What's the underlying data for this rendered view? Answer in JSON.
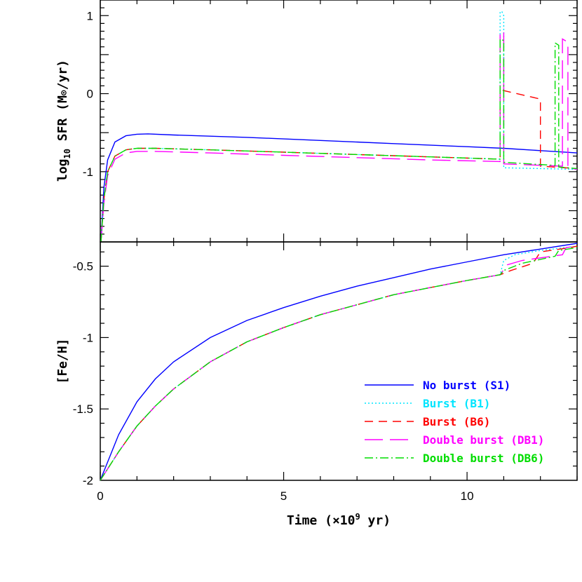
{
  "chart_data": [
    {
      "type": "line",
      "panel": "top",
      "ylabel": "log10 SFR (M⊙/yr)",
      "ylabel_parts": {
        "main": "log",
        "sub": "10",
        "rest": " SFR (M",
        "sun": "⊙",
        "end": "/yr)"
      },
      "xlim": [
        0,
        13
      ],
      "ylim": [
        -1.9,
        1.2
      ],
      "yticks": [
        1,
        0,
        -1
      ],
      "ytick_labels": [
        "1",
        "0",
        "-1"
      ],
      "series": [
        {
          "name": "No burst (S1)",
          "color": "#0000ff",
          "dash": "",
          "x": [
            0.02,
            0.1,
            0.2,
            0.4,
            0.7,
            1.0,
            1.3,
            2,
            4,
            6,
            8,
            10,
            11,
            12,
            13
          ],
          "y": [
            -1.9,
            -1.2,
            -0.85,
            -0.62,
            -0.54,
            -0.52,
            -0.515,
            -0.53,
            -0.56,
            -0.6,
            -0.64,
            -0.68,
            -0.7,
            -0.73,
            -0.76
          ]
        },
        {
          "name": "Burst (B1)",
          "color": "#00e5ff",
          "dash": "2 3",
          "x": [
            0.02,
            0.1,
            0.2,
            0.4,
            0.7,
            1.0,
            1.5,
            3,
            5,
            7,
            9,
            10.9,
            10.9,
            10.95,
            11.0,
            11.0,
            12,
            13
          ],
          "y": [
            -1.9,
            -1.35,
            -1.0,
            -0.8,
            -0.72,
            -0.7,
            -0.7,
            -0.72,
            -0.75,
            -0.78,
            -0.81,
            -0.84,
            1.05,
            1.05,
            1.0,
            -0.95,
            -0.96,
            -0.97
          ]
        },
        {
          "name": "Burst (B6)",
          "color": "#ff0000",
          "dash": "12 8",
          "x": [
            0.02,
            0.1,
            0.2,
            0.4,
            0.7,
            1.0,
            1.5,
            3,
            5,
            7,
            9,
            10.9,
            10.9,
            12.0,
            12.0,
            13
          ],
          "y": [
            -1.9,
            -1.35,
            -1.0,
            -0.8,
            -0.72,
            -0.7,
            -0.7,
            -0.72,
            -0.75,
            -0.78,
            -0.81,
            -0.84,
            0.05,
            -0.07,
            -0.93,
            -0.96
          ]
        },
        {
          "name": "Double burst (DB1)",
          "color": "#ff00ff",
          "dash": "26 10",
          "x": [
            0.02,
            0.1,
            0.2,
            0.4,
            0.7,
            1.0,
            1.5,
            3,
            5,
            7,
            9,
            10.9,
            10.9,
            11.0,
            11.0,
            12.6,
            12.6,
            12.75,
            12.75,
            13
          ],
          "y": [
            -1.9,
            -1.4,
            -1.05,
            -0.84,
            -0.76,
            -0.74,
            -0.74,
            -0.76,
            -0.79,
            -0.82,
            -0.85,
            -0.87,
            0.8,
            0.78,
            -0.9,
            -0.93,
            0.7,
            0.66,
            -0.95,
            -0.97
          ]
        },
        {
          "name": "Double burst (DB6)",
          "color": "#00dd00",
          "dash": "12 4 2 4",
          "x": [
            0.02,
            0.1,
            0.2,
            0.4,
            0.7,
            1.0,
            1.5,
            3,
            5,
            7,
            9,
            10.9,
            10.9,
            11.0,
            11.0,
            12.4,
            12.4,
            12.5,
            12.5,
            13
          ],
          "y": [
            -1.9,
            -1.35,
            -1.0,
            -0.8,
            -0.72,
            -0.7,
            -0.7,
            -0.72,
            -0.75,
            -0.78,
            -0.81,
            -0.84,
            0.7,
            0.68,
            -0.88,
            -0.92,
            0.65,
            0.62,
            -0.94,
            -0.96
          ]
        }
      ]
    },
    {
      "type": "line",
      "panel": "bottom",
      "xlabel": "Time (×10⁹ yr)",
      "xlabel_parts": {
        "main": "Time (×10",
        "sup": "9",
        "rest": " yr)"
      },
      "ylabel": "[Fe/H]",
      "xlim": [
        0,
        13
      ],
      "ylim": [
        -2.0,
        -0.33
      ],
      "xticks": [
        0,
        5,
        10
      ],
      "xtick_labels": [
        "0",
        "5",
        "10"
      ],
      "yticks": [
        -0.5,
        -1,
        -1.5,
        -2
      ],
      "ytick_labels": [
        "-0.5",
        "-1",
        "-1.5",
        "-2"
      ],
      "series": [
        {
          "name": "No burst (S1)",
          "color": "#0000ff",
          "dash": "",
          "x": [
            0,
            0.5,
            1,
            1.5,
            2,
            3,
            4,
            5,
            6,
            7,
            8,
            9,
            10,
            11,
            12,
            13
          ],
          "y": [
            -2.0,
            -1.68,
            -1.45,
            -1.29,
            -1.17,
            -1.0,
            -0.88,
            -0.79,
            -0.71,
            -0.64,
            -0.58,
            -0.52,
            -0.47,
            -0.42,
            -0.38,
            -0.34
          ]
        },
        {
          "name": "Burst (B1)",
          "color": "#00e5ff",
          "dash": "2 3",
          "x": [
            0,
            0.5,
            1,
            1.5,
            2,
            3,
            4,
            5,
            6,
            7,
            8,
            9,
            10,
            10.9,
            11.0,
            11.3,
            12,
            13
          ],
          "y": [
            -2.0,
            -1.8,
            -1.62,
            -1.48,
            -1.36,
            -1.17,
            -1.03,
            -0.93,
            -0.84,
            -0.77,
            -0.7,
            -0.65,
            -0.6,
            -0.56,
            -0.46,
            -0.42,
            -0.39,
            -0.36
          ]
        },
        {
          "name": "Burst (B6)",
          "color": "#ff0000",
          "dash": "12 8",
          "x": [
            0,
            0.5,
            1,
            1.5,
            2,
            3,
            4,
            5,
            6,
            7,
            8,
            9,
            10,
            10.9,
            11.2,
            11.8,
            12.0,
            12.8,
            13
          ],
          "y": [
            -2.0,
            -1.8,
            -1.62,
            -1.48,
            -1.36,
            -1.17,
            -1.03,
            -0.93,
            -0.84,
            -0.77,
            -0.7,
            -0.65,
            -0.6,
            -0.56,
            -0.53,
            -0.48,
            -0.4,
            -0.37,
            -0.36
          ]
        },
        {
          "name": "Double burst (DB1)",
          "color": "#ff00ff",
          "dash": "26 10",
          "x": [
            0,
            0.5,
            1,
            1.5,
            2,
            3,
            4,
            5,
            6,
            7,
            8,
            9,
            10,
            10.9,
            11.1,
            11.5,
            12.6,
            12.7,
            13
          ],
          "y": [
            -2.0,
            -1.8,
            -1.62,
            -1.48,
            -1.36,
            -1.17,
            -1.03,
            -0.93,
            -0.84,
            -0.77,
            -0.7,
            -0.65,
            -0.6,
            -0.56,
            -0.49,
            -0.46,
            -0.42,
            -0.37,
            -0.36
          ]
        },
        {
          "name": "Double burst (DB6)",
          "color": "#00dd00",
          "dash": "12 4 2 4",
          "x": [
            0,
            0.5,
            1,
            1.5,
            2,
            3,
            4,
            5,
            6,
            7,
            8,
            9,
            10,
            10.9,
            11.0,
            11.5,
            12.4,
            12.5,
            13
          ],
          "y": [
            -2.0,
            -1.8,
            -1.62,
            -1.48,
            -1.36,
            -1.17,
            -1.03,
            -0.93,
            -0.84,
            -0.77,
            -0.7,
            -0.65,
            -0.6,
            -0.56,
            -0.53,
            -0.48,
            -0.43,
            -0.39,
            -0.37
          ]
        }
      ]
    }
  ],
  "legend": {
    "placement": "bottom-right",
    "entries": [
      {
        "label": "No burst (S1)",
        "color": "#0000ff",
        "dash": ""
      },
      {
        "label": "Burst (B1)",
        "color": "#00e5ff",
        "dash": "2 3"
      },
      {
        "label": "Burst (B6)",
        "color": "#ff0000",
        "dash": "12 8"
      },
      {
        "label": "Double burst (DB1)",
        "color": "#ff00ff",
        "dash": "26 10"
      },
      {
        "label": "Double burst (DB6)",
        "color": "#00dd00",
        "dash": "12 4 2 4"
      }
    ]
  }
}
